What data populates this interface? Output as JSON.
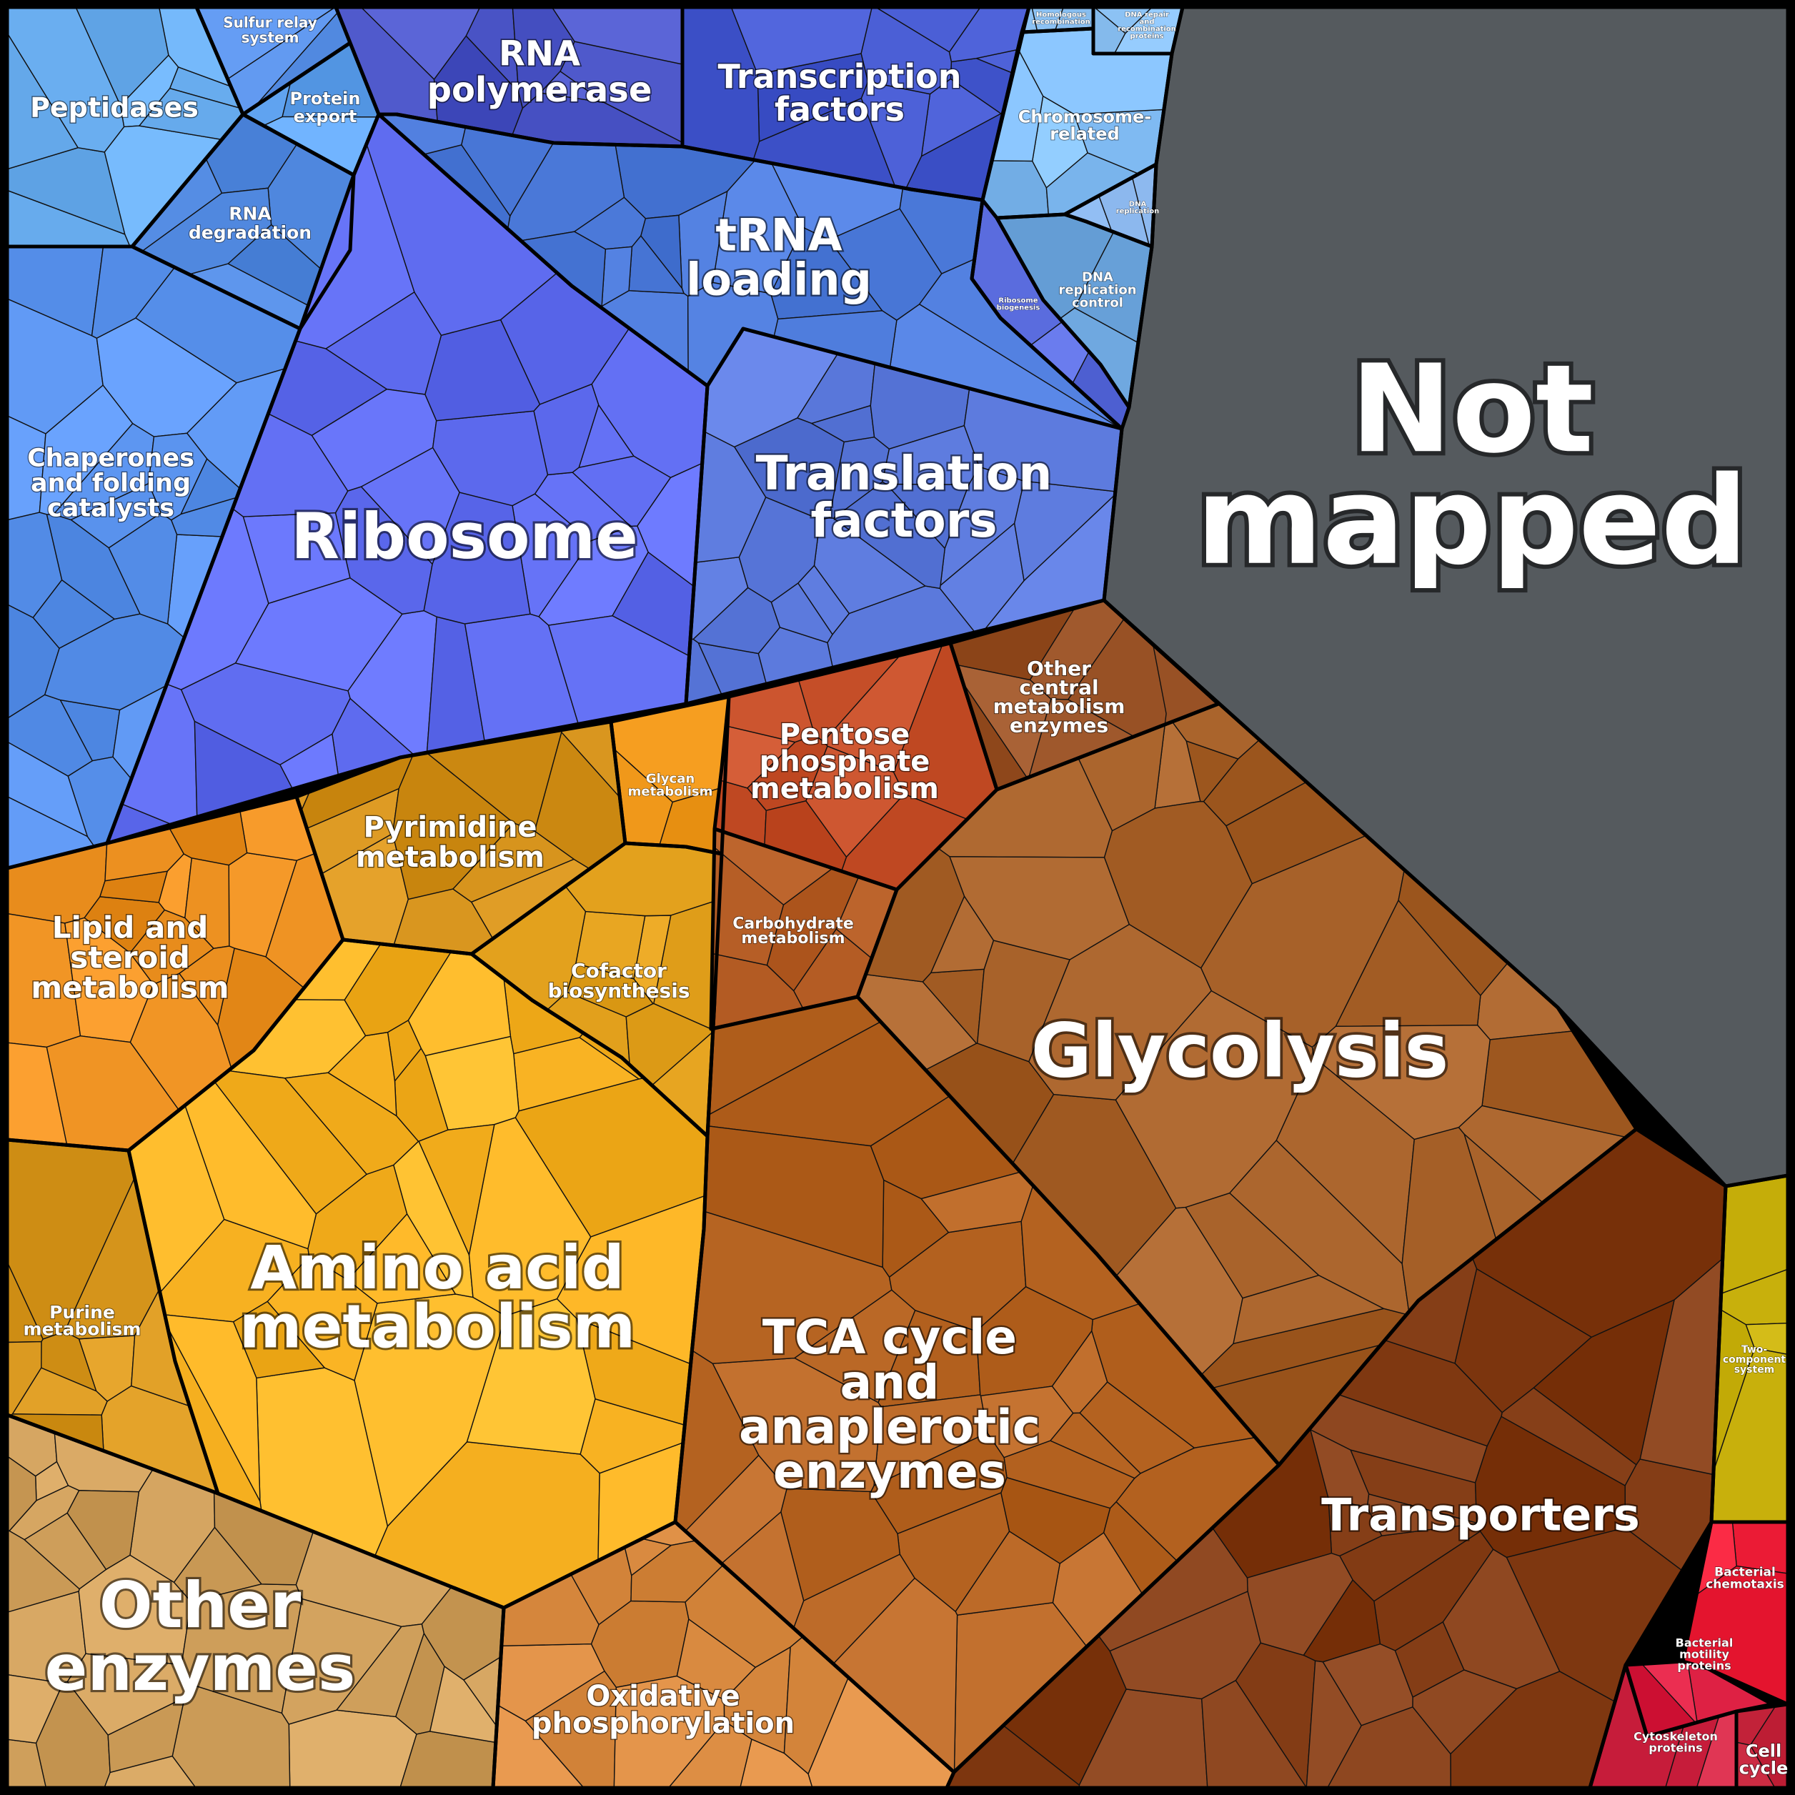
{
  "title": "",
  "regions": [
    {
      "id": "peptidases",
      "label": [
        "Peptidases"
      ],
      "color": "#6aaef0"
    },
    {
      "id": "sulfur_relay",
      "label": [
        "Sulfur relay",
        "system"
      ],
      "color": "#5f97ee"
    },
    {
      "id": "protein_export",
      "label": [
        "Protein",
        "export"
      ],
      "color": "#62a5f2"
    },
    {
      "id": "rna_degradation",
      "label": [
        "RNA",
        "degradation"
      ],
      "color": "#4f87de"
    },
    {
      "id": "chaperones",
      "label": [
        "Chaperones",
        "and folding",
        "catalysts"
      ],
      "color": "#5a93ee"
    },
    {
      "id": "rna_polymerase",
      "label": [
        "RNA",
        "polymerase"
      ],
      "color": "#4c56c8"
    },
    {
      "id": "transcription_factors",
      "label": [
        "Transcription",
        "factors"
      ],
      "color": "#4458cf"
    },
    {
      "id": "homologous_recomb",
      "label": [
        "Homologous",
        "recombination"
      ],
      "color": "#8cc2f4"
    },
    {
      "id": "dna_repair",
      "label": [
        "DNA repair",
        "and",
        "recombination",
        "proteins"
      ],
      "color": "#8cc2f4"
    },
    {
      "id": "chromosome_related",
      "label": [
        "Chromosome-",
        "related"
      ],
      "color": "#82bdf5"
    },
    {
      "id": "dna_replication",
      "label": [
        "DNA",
        "replication"
      ],
      "color": "#8cb8ee"
    },
    {
      "id": "dna_replication_control",
      "label": [
        "DNA",
        "replication",
        "control"
      ],
      "color": "#75aee6"
    },
    {
      "id": "ribosome_biogenesis",
      "label": [
        "Ribosome",
        "biogenesis"
      ],
      "color": "#5c6ee0"
    },
    {
      "id": "trna_loading",
      "label": [
        "tRNA",
        "loading"
      ],
      "color": "#4c7ada"
    },
    {
      "id": "ribosome",
      "label": [
        "Ribosome"
      ],
      "color": "#5f6cf0"
    },
    {
      "id": "translation_factors",
      "label": [
        "Translation",
        "factors"
      ],
      "color": "#5c7add"
    },
    {
      "id": "not_mapped",
      "label": [
        "Not",
        "mapped"
      ],
      "color": "#555a5e"
    },
    {
      "id": "pyrimidine",
      "label": [
        "Pyrimidine",
        "metabolism"
      ],
      "color": "#d8951e"
    },
    {
      "id": "glycan",
      "label": [
        "Glycan",
        "metabolism"
      ],
      "color": "#f0981a"
    },
    {
      "id": "pentose",
      "label": [
        "Pentose",
        "phosphate",
        "metabolism"
      ],
      "color": "#c9522c"
    },
    {
      "id": "other_central",
      "label": [
        "Other",
        "central",
        "metabolism",
        "enzymes"
      ],
      "color": "#9b5428"
    },
    {
      "id": "lipid",
      "label": [
        "Lipid and",
        "steroid",
        "metabolism"
      ],
      "color": "#ec9020"
    },
    {
      "id": "cofactor",
      "label": [
        "Cofactor",
        "biosynthesis"
      ],
      "color": "#e2a01c"
    },
    {
      "id": "carbohydrate",
      "label": [
        "Carbohydrate",
        "metabolism"
      ],
      "color": "#b25a22"
    },
    {
      "id": "glycolysis",
      "label": [
        "Glycolysis"
      ],
      "color": "#a8622a"
    },
    {
      "id": "purine",
      "label": [
        "Purine",
        "metabolism"
      ],
      "color": "#d9981f"
    },
    {
      "id": "amino_acid",
      "label": [
        "Amino acid",
        "metabolism"
      ],
      "color": "#fab424"
    },
    {
      "id": "tca",
      "label": [
        "TCA cycle",
        "and",
        "anaplerotic",
        "enzymes"
      ],
      "color": "#b86624"
    },
    {
      "id": "other_enzymes",
      "label": [
        "Other",
        "enzymes"
      ],
      "color": "#d0a05c"
    },
    {
      "id": "oxidative_phos",
      "label": [
        "Oxidative",
        "phosphorylation"
      ],
      "color": "#d98a40"
    },
    {
      "id": "transporters",
      "label": [
        "Transporters"
      ],
      "color": "#853e17"
    },
    {
      "id": "two_component",
      "label": [
        "Two-",
        "component",
        "system"
      ],
      "color": "#c8b00c"
    },
    {
      "id": "bacterial_chemotaxis",
      "label": [
        "Bacterial",
        "chemotaxis"
      ],
      "color": "#f0203a"
    },
    {
      "id": "bacterial_motility",
      "label": [
        "Bacterial",
        "motility",
        "proteins"
      ],
      "color": "#dc1f42"
    },
    {
      "id": "cytoskeleton",
      "label": [
        "Cytoskeleton",
        "proteins"
      ],
      "color": "#d42a48"
    },
    {
      "id": "cell_cycle",
      "label": [
        "Cell",
        "cycle"
      ],
      "color": "#c8283f"
    }
  ]
}
